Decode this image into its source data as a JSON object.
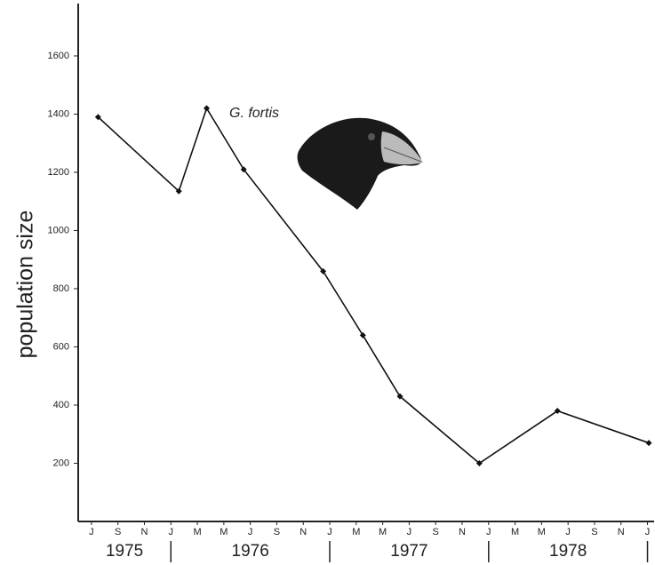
{
  "chart_data": {
    "type": "line",
    "ylabel": "population size",
    "annotation": "G. fortis",
    "x": [
      0.5,
      6.6,
      8.7,
      11.5,
      17.5,
      20.5,
      23.3,
      29.3,
      35.2,
      42.1
    ],
    "series": [
      {
        "name": "G. fortis",
        "color": "#111111",
        "values": [
          1390,
          1135,
          1420,
          1210,
          860,
          640,
          430,
          200,
          380,
          270
        ]
      }
    ],
    "xlim": [
      -1,
      42.5
    ],
    "xticks": [
      {
        "value": 0,
        "label": "J"
      },
      {
        "value": 2,
        "label": "S"
      },
      {
        "value": 4,
        "label": "N"
      },
      {
        "value": 6,
        "label": "J"
      },
      {
        "value": 8,
        "label": "M"
      },
      {
        "value": 10,
        "label": "M"
      },
      {
        "value": 12,
        "label": "J"
      },
      {
        "value": 14,
        "label": "S"
      },
      {
        "value": 16,
        "label": "N"
      },
      {
        "value": 18,
        "label": "J"
      },
      {
        "value": 20,
        "label": "M"
      },
      {
        "value": 22,
        "label": "M"
      },
      {
        "value": 24,
        "label": "J"
      },
      {
        "value": 26,
        "label": "S"
      },
      {
        "value": 28,
        "label": "N"
      },
      {
        "value": 30,
        "label": "J"
      },
      {
        "value": 32,
        "label": "M"
      },
      {
        "value": 34,
        "label": "M"
      },
      {
        "value": 36,
        "label": "J"
      },
      {
        "value": 38,
        "label": "S"
      },
      {
        "value": 40,
        "label": "N"
      },
      {
        "value": 42,
        "label": "J"
      }
    ],
    "years": [
      "1975",
      "1976",
      "1977",
      "1978"
    ],
    "ylim": [
      0,
      1780
    ],
    "yticks": [
      200,
      400,
      600,
      800,
      1000,
      1200,
      1400,
      1600
    ],
    "grid": false
  }
}
